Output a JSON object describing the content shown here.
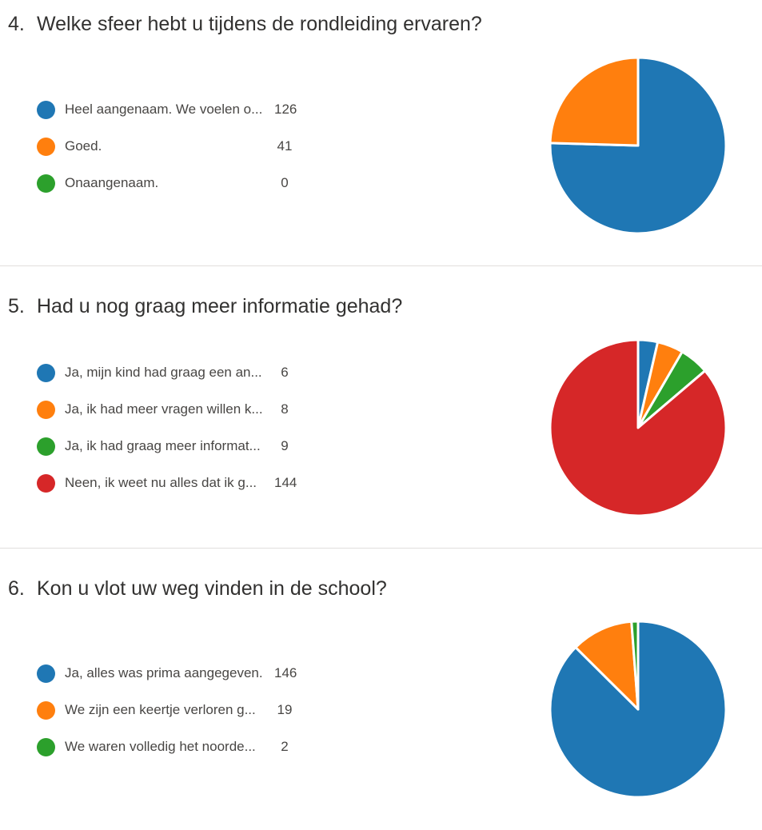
{
  "colors": {
    "blue": "#2271b1",
    "orange": "#ff7f0e",
    "green": "#2ca02c",
    "red": "#d62728"
  },
  "questions": [
    {
      "number": "4.",
      "title": "Welke sfeer hebt u tijdens de rondleiding ervaren?",
      "options": [
        {
          "label": "Heel aangenaam. We voelen o...",
          "count": "126",
          "color": "#1f77b4"
        },
        {
          "label": "Goed.",
          "count": "41",
          "color": "#ff7f0e"
        },
        {
          "label": "Onaangenaam.",
          "count": "0",
          "color": "#2ca02c"
        }
      ]
    },
    {
      "number": "5.",
      "title": "Had u nog graag meer informatie gehad?",
      "options": [
        {
          "label": "Ja, mijn kind had graag een an...",
          "count": "6",
          "color": "#1f77b4"
        },
        {
          "label": "Ja, ik had meer vragen willen k...",
          "count": "8",
          "color": "#ff7f0e"
        },
        {
          "label": "Ja, ik had graag meer informat...",
          "count": "9",
          "color": "#2ca02c"
        },
        {
          "label": "Neen, ik weet nu alles dat ik g...",
          "count": "144",
          "color": "#d62728"
        }
      ]
    },
    {
      "number": "6.",
      "title": "Kon u vlot uw weg vinden in de school?",
      "options": [
        {
          "label": "Ja, alles was prima aangegeven.",
          "count": "146",
          "color": "#1f77b4"
        },
        {
          "label": "We zijn een keertje verloren g...",
          "count": "19",
          "color": "#ff7f0e"
        },
        {
          "label": "We waren volledig het noorde...",
          "count": "2",
          "color": "#2ca02c"
        }
      ]
    }
  ],
  "chart_data": [
    {
      "type": "pie",
      "title": "Welke sfeer hebt u tijdens de rondleiding ervaren?",
      "categories": [
        "Heel aangenaam. We voelen o...",
        "Goed.",
        "Onaangenaam."
      ],
      "values": [
        126,
        41,
        0
      ]
    },
    {
      "type": "pie",
      "title": "Had u nog graag meer informatie gehad?",
      "categories": [
        "Ja, mijn kind had graag een an...",
        "Ja, ik had meer vragen willen k...",
        "Ja, ik had graag meer informat...",
        "Neen, ik weet nu alles dat ik g..."
      ],
      "values": [
        6,
        8,
        9,
        144
      ]
    },
    {
      "type": "pie",
      "title": "Kon u vlot uw weg vinden in de school?",
      "categories": [
        "Ja, alles was prima aangegeven.",
        "We zijn een keertje verloren g...",
        "We waren volledig het noorde..."
      ],
      "values": [
        146,
        19,
        2
      ]
    }
  ]
}
